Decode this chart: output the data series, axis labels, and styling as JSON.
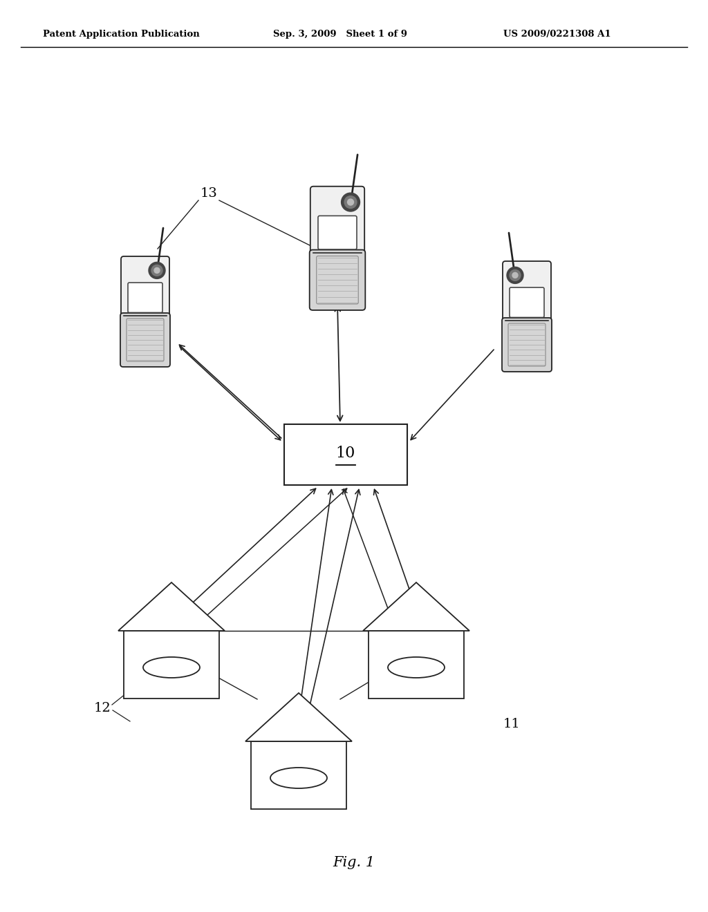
{
  "bg": "#ffffff",
  "header_left": "Patent Application Publication",
  "header_mid": "Sep. 3, 2009   Sheet 1 of 9",
  "header_right": "US 2009/0221308 A1",
  "fig_label": "Fig. 1",
  "lbl_13": "13",
  "lbl_10": "10",
  "lbl_11": "11",
  "lbl_12": "12",
  "line_color": "#222222"
}
